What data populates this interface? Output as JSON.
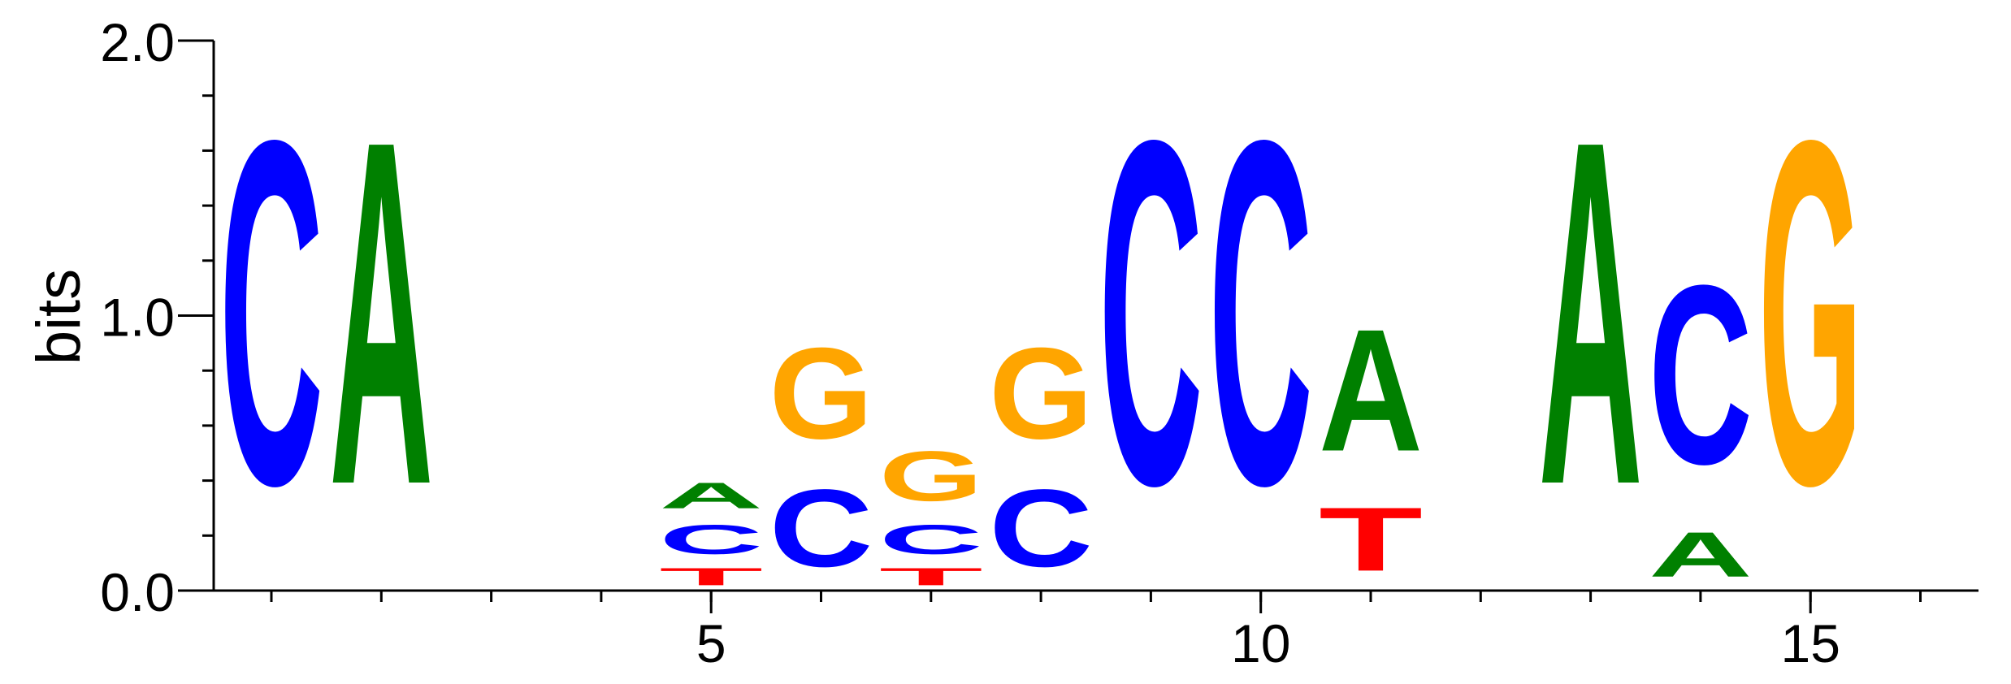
{
  "chart_data": {
    "type": "sequence-logo",
    "ylabel": "bits",
    "ylim": [
      0,
      2
    ],
    "y_ticks": [
      "0.0",
      "1.0",
      "2.0"
    ],
    "y_tick_values": [
      0,
      1,
      2
    ],
    "y_minor_step": 0.2,
    "x_range": [
      1,
      16
    ],
    "x_ticks": [
      "5",
      "10",
      "15"
    ],
    "x_tick_values": [
      5,
      10,
      15
    ],
    "colors": {
      "A": "#008000",
      "C": "#0000ff",
      "G": "#ffa500",
      "T": "#ff0000"
    },
    "positions": [
      {
        "pos": 1,
        "letters": [
          {
            "base": "C",
            "bits": 2.0
          }
        ]
      },
      {
        "pos": 2,
        "letters": [
          {
            "base": "A",
            "bits": 2.0
          }
        ]
      },
      {
        "pos": 3,
        "letters": []
      },
      {
        "pos": 4,
        "letters": []
      },
      {
        "pos": 5,
        "letters": [
          {
            "base": "T",
            "bits": 0.1
          },
          {
            "base": "C",
            "bits": 0.17
          },
          {
            "base": "A",
            "bits": 0.15
          }
        ]
      },
      {
        "pos": 6,
        "letters": [
          {
            "base": "C",
            "bits": 0.45
          },
          {
            "base": "G",
            "bits": 0.53
          }
        ]
      },
      {
        "pos": 7,
        "letters": [
          {
            "base": "T",
            "bits": 0.1
          },
          {
            "base": "C",
            "bits": 0.17
          },
          {
            "base": "G",
            "bits": 0.29
          }
        ]
      },
      {
        "pos": 8,
        "letters": [
          {
            "base": "C",
            "bits": 0.45
          },
          {
            "base": "G",
            "bits": 0.53
          }
        ]
      },
      {
        "pos": 9,
        "letters": [
          {
            "base": "C",
            "bits": 2.0
          }
        ]
      },
      {
        "pos": 10,
        "letters": [
          {
            "base": "C",
            "bits": 2.0
          }
        ]
      },
      {
        "pos": 11,
        "letters": [
          {
            "base": "T",
            "bits": 0.37
          },
          {
            "base": "A",
            "bits": 0.71
          }
        ]
      },
      {
        "pos": 12,
        "letters": []
      },
      {
        "pos": 13,
        "letters": [
          {
            "base": "A",
            "bits": 2.0
          }
        ]
      },
      {
        "pos": 14,
        "letters": [
          {
            "base": "A",
            "bits": 0.26
          },
          {
            "base": "C",
            "bits": 1.04
          }
        ]
      },
      {
        "pos": 15,
        "letters": [
          {
            "base": "G",
            "bits": 2.0
          }
        ]
      }
    ]
  }
}
